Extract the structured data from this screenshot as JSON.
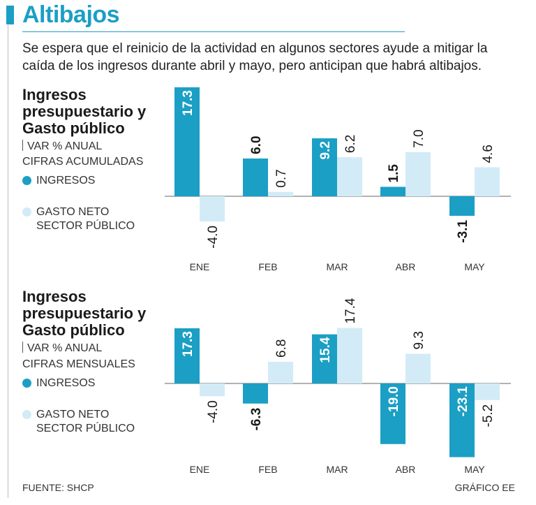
{
  "title": "Altibajos",
  "subtitle": "Se espera que el reinicio de la actividad en algunos sectores ayude a mitigar la caída de los ingresos durante abril y mayo, pero anticipan que habrá altibajos.",
  "source": "FUENTE: SHCP",
  "credit": "GRÁFICO EE",
  "colors": {
    "ingresos": "#1b9fc5",
    "gasto": "#d2ebf7",
    "title": "#1b9fc5"
  },
  "chart_data": [
    {
      "type": "bar",
      "title": "Ingresos presupuestario y Gasto público",
      "unit_label": "VAR % ANUAL",
      "subtitle": "CIFRAS ACUMULADAS",
      "categories": [
        "ENE",
        "FEB",
        "MAR",
        "ABR",
        "MAY"
      ],
      "series": [
        {
          "name": "INGRESOS",
          "values": [
            17.3,
            6.0,
            9.2,
            1.5,
            -3.1
          ]
        },
        {
          "name": "GASTO NETO SECTOR PÚBLICO",
          "values": [
            -4.0,
            0.7,
            6.2,
            7.0,
            4.6
          ]
        }
      ],
      "ylim": [
        -4.0,
        17.3
      ]
    },
    {
      "type": "bar",
      "title": "Ingresos presupuestario y Gasto público",
      "unit_label": "VAR % ANUAL",
      "subtitle": "CIFRAS MENSUALES",
      "categories": [
        "ENE",
        "FEB",
        "MAR",
        "ABR",
        "MAY"
      ],
      "series": [
        {
          "name": "INGRESOS",
          "values": [
            17.3,
            -6.3,
            15.4,
            -19.0,
            -23.1
          ]
        },
        {
          "name": "GASTO NETO SECTOR PÚBLICO",
          "values": [
            -4.0,
            6.8,
            17.4,
            9.3,
            -5.2
          ]
        }
      ],
      "ylim": [
        -23.1,
        17.4
      ]
    }
  ]
}
